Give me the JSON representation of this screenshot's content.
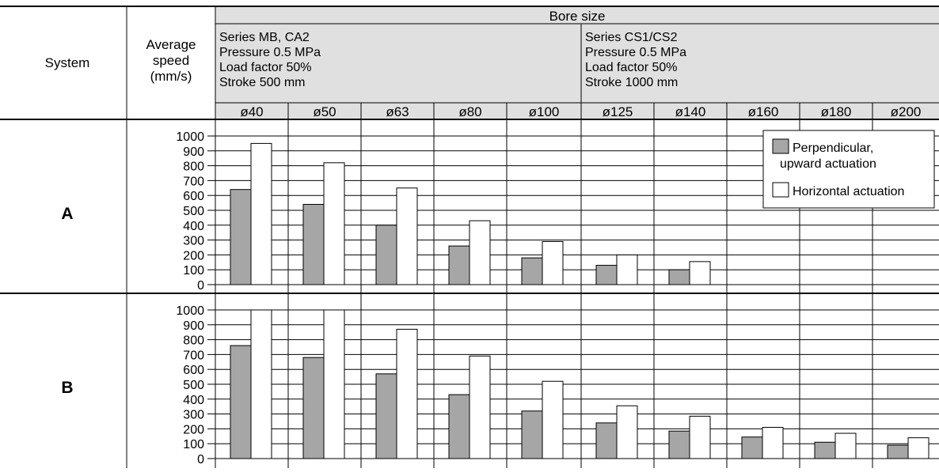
{
  "header": {
    "system": "System",
    "avg_speed": [
      "Average",
      "speed",
      "(mm/s)"
    ],
    "bore_size": "Bore size",
    "group1": [
      "Series MB, CA2",
      "Pressure 0.5 MPa",
      "Load factor 50%",
      "Stroke 500 mm"
    ],
    "group2": [
      "Series CS1/CS2",
      "Pressure 0.5 MPa",
      "Load factor 50%",
      "Stroke 1000 mm"
    ]
  },
  "legend": {
    "perpendicular": [
      "Perpendicular,",
      "upward actuation"
    ],
    "horizontal": "Horizontal actuation"
  },
  "colors": {
    "perpendicular": "#a6a6a6",
    "horizontal": "#ffffff",
    "header_bg": "#e0e0e0"
  },
  "chart_data": {
    "type": "bar",
    "categories": [
      "ø40",
      "ø50",
      "ø63",
      "ø80",
      "ø100",
      "ø125",
      "ø140",
      "ø160",
      "ø180",
      "ø200"
    ],
    "yticks": [
      0,
      100,
      200,
      300,
      400,
      500,
      600,
      700,
      800,
      900,
      1000
    ],
    "ylim": [
      0,
      1000
    ],
    "grid": true,
    "legend_position": "top-right",
    "panels": [
      {
        "system": "A",
        "series": [
          {
            "name": "Perpendicular, upward actuation",
            "values": [
              640,
              540,
              400,
              260,
              180,
              130,
              100,
              null,
              null,
              null
            ]
          },
          {
            "name": "Horizontal actuation",
            "values": [
              950,
              820,
              650,
              430,
              290,
              200,
              155,
              null,
              null,
              null
            ]
          }
        ]
      },
      {
        "system": "B",
        "series": [
          {
            "name": "Perpendicular, upward actuation",
            "values": [
              760,
              680,
              570,
              430,
              320,
              240,
              185,
              145,
              110,
              90
            ]
          },
          {
            "name": "Horizontal actuation",
            "values": [
              1000,
              1000,
              870,
              690,
              520,
              355,
              285,
              210,
              170,
              140
            ]
          }
        ]
      }
    ]
  }
}
